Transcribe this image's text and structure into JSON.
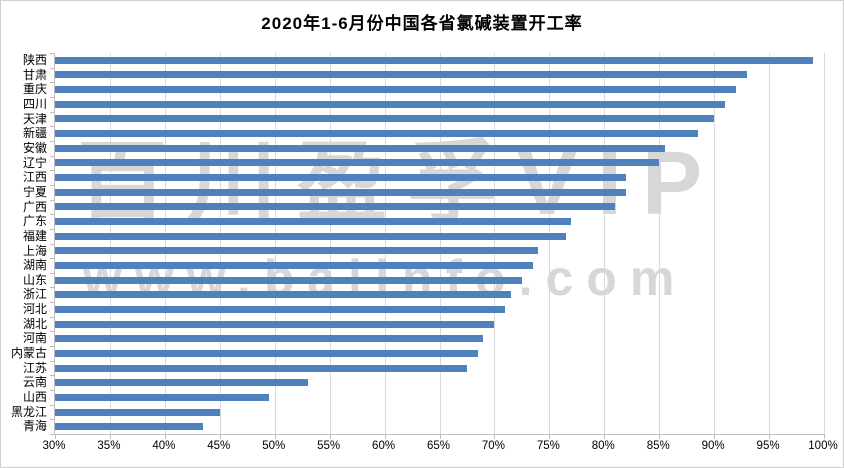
{
  "chart": {
    "title": "2020年1-6月份中国各省氯碱装置开工率",
    "watermark_line1": "百川盈孚VIP",
    "watermark_line2": "www.baiinfo.com",
    "bar_color": "#4F81BD",
    "gridline_color": "#D9D9D9",
    "axis_color": "#BFBFBF"
  },
  "chart_data": {
    "type": "bar",
    "orientation": "horizontal",
    "title": "2020年1-6月份中国各省氯碱装置开工率",
    "categories": [
      "陕西",
      "甘肃",
      "重庆",
      "四川",
      "天津",
      "新疆",
      "安徽",
      "辽宁",
      "江西",
      "宁夏",
      "广西",
      "广东",
      "福建",
      "上海",
      "湖南",
      "山东",
      "浙江",
      "河北",
      "湖北",
      "河南",
      "内蒙古",
      "江苏",
      "云南",
      "山西",
      "黑龙江",
      "青海"
    ],
    "values": [
      99,
      93,
      92,
      91,
      90,
      88.5,
      85.5,
      85,
      82,
      82,
      81,
      77,
      76.5,
      74,
      73.5,
      72.5,
      71.5,
      71,
      70,
      69,
      68.5,
      67.5,
      53,
      49.5,
      45,
      43.5
    ],
    "unit": "%",
    "xlim": [
      30,
      100
    ],
    "x_tick_step": 5,
    "x_tick_labels": [
      "30%",
      "35%",
      "40%",
      "45%",
      "50%",
      "55%",
      "60%",
      "65%",
      "70%",
      "75%",
      "80%",
      "85%",
      "90%",
      "95%",
      "100%"
    ],
    "grid": true,
    "legend": "none"
  }
}
